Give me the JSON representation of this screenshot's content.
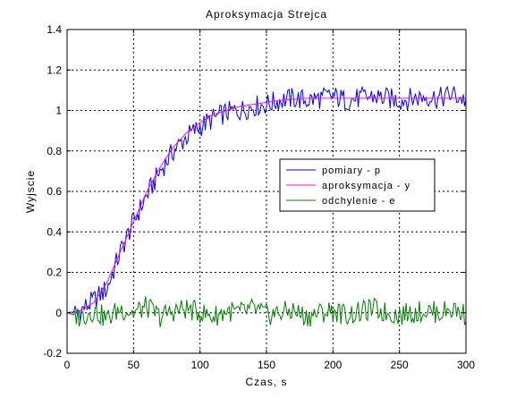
{
  "chart_data": {
    "type": "line",
    "title": "Aproksymacja Strejca",
    "xlabel": "Czas, s",
    "ylabel": "Wyjscie",
    "xlim": [
      0,
      300
    ],
    "ylim": [
      -0.2,
      1.4
    ],
    "xticks": [
      "0",
      "50",
      "100",
      "150",
      "200",
      "250",
      "300"
    ],
    "yticks": [
      "-0.2",
      "0",
      "0.2",
      "0.4",
      "0.6",
      "0.8",
      "1",
      "1.2",
      "1.4"
    ],
    "grid": true,
    "legend_position": "right-center",
    "x": [
      0,
      10,
      20,
      30,
      40,
      50,
      60,
      70,
      80,
      90,
      100,
      110,
      120,
      130,
      140,
      150,
      160,
      170,
      180,
      190,
      200,
      210,
      220,
      230,
      240,
      250,
      260,
      270,
      280,
      290,
      300
    ],
    "series": [
      {
        "name": "pomiary - p",
        "color": "#0000ff",
        "values": [
          0.0,
          0.01,
          0.06,
          0.12,
          0.3,
          0.45,
          0.58,
          0.7,
          0.8,
          0.87,
          0.92,
          0.96,
          0.99,
          1.0,
          1.02,
          1.03,
          1.05,
          1.06,
          1.05,
          1.06,
          1.07,
          1.05,
          1.06,
          1.07,
          1.06,
          1.05,
          1.06,
          1.07,
          1.06,
          1.08,
          1.05
        ]
      },
      {
        "name": "aproksymacja - y",
        "color": "#ff00ff",
        "values": [
          0.0,
          0.01,
          0.05,
          0.15,
          0.3,
          0.45,
          0.6,
          0.72,
          0.82,
          0.89,
          0.94,
          0.98,
          1.0,
          1.02,
          1.03,
          1.04,
          1.05,
          1.055,
          1.06,
          1.06,
          1.06,
          1.06,
          1.06,
          1.06,
          1.06,
          1.06,
          1.06,
          1.06,
          1.06,
          1.06,
          1.06
        ]
      },
      {
        "name": "odchylenie - e",
        "color": "#008000",
        "values": [
          0.0,
          -0.02,
          0.01,
          -0.03,
          0.02,
          0.0,
          0.03,
          -0.02,
          0.01,
          0.02,
          0.0,
          -0.02,
          0.01,
          0.0,
          0.02,
          -0.01,
          0.0,
          0.01,
          -0.02,
          0.0,
          0.01,
          -0.01,
          0.0,
          0.02,
          0.0,
          -0.01,
          0.0,
          0.01,
          0.0,
          0.02,
          -0.01
        ]
      }
    ]
  }
}
